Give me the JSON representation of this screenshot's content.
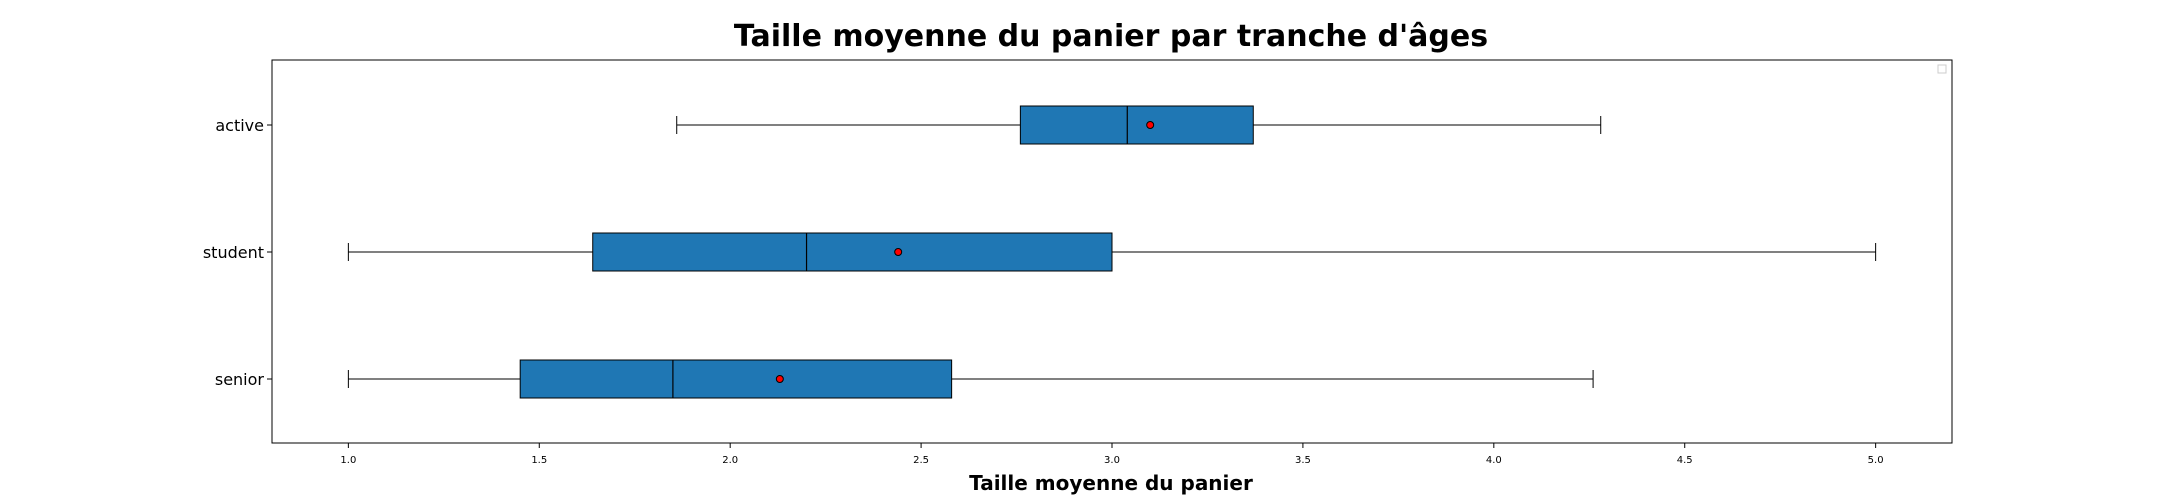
{
  "chart_data": {
    "type": "boxplot",
    "orientation": "horizontal",
    "title": "Taille moyenne du panier par tranche d'âges",
    "xlabel": "Taille moyenne du panier",
    "ylabel": "",
    "xlim": [
      0.8,
      5.2
    ],
    "xticks": [
      1.0,
      1.5,
      2.0,
      2.5,
      3.0,
      3.5,
      4.0,
      4.5,
      5.0
    ],
    "xtick_labels": [
      "1.0",
      "1.5",
      "2.0",
      "2.5",
      "3.0",
      "3.5",
      "4.0",
      "4.5",
      "5.0"
    ],
    "grid": false,
    "legend": "top-right (empty)",
    "box_color": "#1f77b4",
    "edge_color": "#000000",
    "mean_marker_color": "#ff0000",
    "categories": [
      "active",
      "student",
      "senior"
    ],
    "boxes": [
      {
        "label": "active",
        "whisker_low": 1.86,
        "q1": 2.76,
        "median": 3.04,
        "q3": 3.37,
        "whisker_high": 4.28,
        "mean": 3.1
      },
      {
        "label": "student",
        "whisker_low": 1.0,
        "q1": 1.64,
        "median": 2.2,
        "q3": 3.0,
        "whisker_high": 5.0,
        "mean": 2.44
      },
      {
        "label": "senior",
        "whisker_low": 1.0,
        "q1": 1.45,
        "median": 1.85,
        "q3": 2.58,
        "whisker_high": 4.26,
        "mean": 2.13
      }
    ]
  }
}
